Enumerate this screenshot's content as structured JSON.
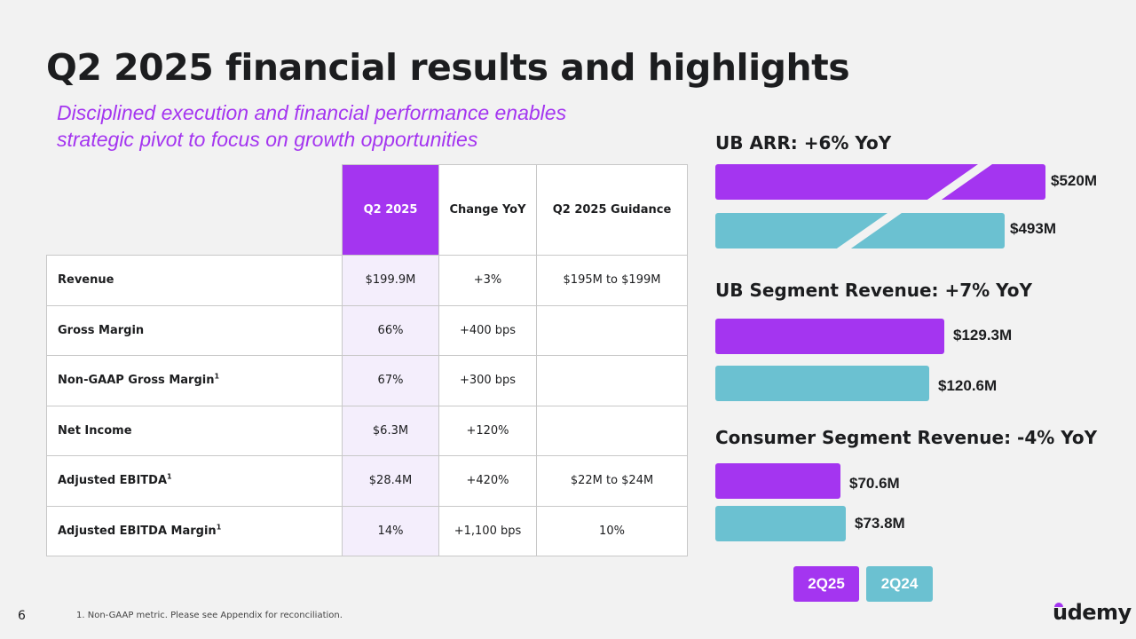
{
  "slide": {
    "title": "Q2 2025 financial results and highlights",
    "subtitle_line1": "Disciplined execution and financial performance enables",
    "subtitle_line2": "strategic pivot to focus on growth opportunities",
    "page_number": "6",
    "footnote": "1.  Non-GAAP metric. Please see Appendix for reconciliation.",
    "logo_text": "udemy"
  },
  "table": {
    "headers": [
      "Q2 2025",
      "Change YoY",
      "Q2 2025 Guidance"
    ],
    "rows": [
      {
        "metric": "Revenue",
        "sup": "",
        "q2_2025": "$199.9M",
        "change_yoy": "+3%",
        "guidance": "$195M to $199M"
      },
      {
        "metric": "Gross Margin",
        "sup": "",
        "q2_2025": "66%",
        "change_yoy": "+400 bps",
        "guidance": ""
      },
      {
        "metric": "Non-GAAP Gross Margin",
        "sup": "1",
        "q2_2025": "67%",
        "change_yoy": "+300 bps",
        "guidance": ""
      },
      {
        "metric": "Net Income",
        "sup": "",
        "q2_2025": "$6.3M",
        "change_yoy": "+120%",
        "guidance": ""
      },
      {
        "metric": "Adjusted EBITDA",
        "sup": "1",
        "q2_2025": "$28.4M",
        "change_yoy": "+420%",
        "guidance": "$22M to $24M"
      },
      {
        "metric": "Adjusted EBITDA Margin",
        "sup": "1",
        "q2_2025": "14%",
        "change_yoy": "+1,100 bps",
        "guidance": "10%"
      }
    ]
  },
  "colors": {
    "current": "#a435f0",
    "prior": "#6bc1d1"
  },
  "legend": {
    "current": "2Q25",
    "prior": "2Q24"
  },
  "chart_data": [
    {
      "type": "bar",
      "orientation": "horizontal",
      "title": "UB ARR: +6% YoY",
      "categories": [
        "2Q25",
        "2Q24"
      ],
      "values": [
        520,
        493
      ],
      "value_labels": [
        "$520M",
        "$493M"
      ],
      "unit": "$M",
      "axis_break": true
    },
    {
      "type": "bar",
      "orientation": "horizontal",
      "title": "UB Segment Revenue: +7% YoY",
      "categories": [
        "2Q25",
        "2Q24"
      ],
      "values": [
        129.3,
        120.6
      ],
      "value_labels": [
        "$129.3M",
        "$120.6M"
      ],
      "unit": "$M"
    },
    {
      "type": "bar",
      "orientation": "horizontal",
      "title": "Consumer Segment Revenue: -4% YoY",
      "categories": [
        "2Q25",
        "2Q24"
      ],
      "values": [
        70.6,
        73.8
      ],
      "value_labels": [
        "$70.6M",
        "$73.8M"
      ],
      "unit": "$M"
    }
  ]
}
